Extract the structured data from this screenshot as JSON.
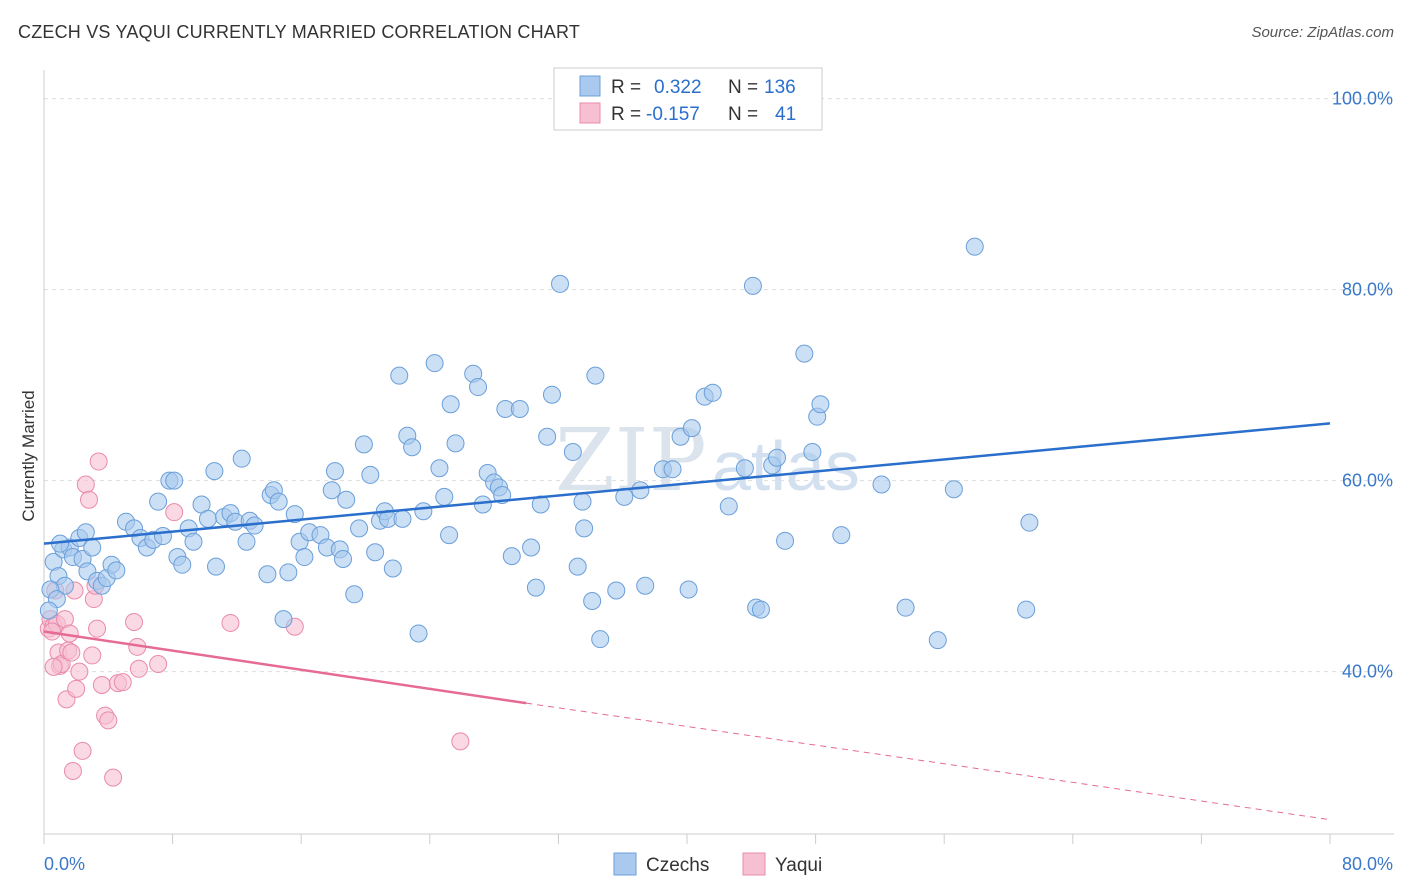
{
  "header": {
    "title": "CZECH VS YAQUI CURRENTLY MARRIED CORRELATION CHART",
    "source": "Source: ZipAtlas.com"
  },
  "watermark": {
    "part1": "ZIP",
    "part2": "atlas"
  },
  "legend_top": [
    {
      "r_label": "R =",
      "r_value": "0.322",
      "n_label": "N =",
      "n_value": "136"
    },
    {
      "r_label": "R =",
      "r_value": "-0.157",
      "n_label": "N =",
      "n_value": "41"
    }
  ],
  "legend_bottom": [
    "Czechs",
    "Yaqui"
  ],
  "colors": {
    "czech_fill": "#a9c9ee",
    "czech_stroke": "#6b9fd9",
    "czech_line": "#2a6fcc",
    "yaqui_fill": "#f7c0d2",
    "yaqui_stroke": "#e98bab",
    "yaqui_line": "#e66a96",
    "tick_label": "#3a78c9"
  },
  "chart_data": {
    "type": "scatter",
    "xlabel": "",
    "ylabel": "Currently Married",
    "xlim": [
      0,
      80
    ],
    "ylim": [
      23,
      103
    ],
    "x_tick_labels": [
      {
        "value": 0,
        "label": "0.0%"
      },
      {
        "value": 80,
        "label": "80.0%"
      }
    ],
    "y_tick_labels": [
      {
        "value": 40,
        "label": "40.0%"
      },
      {
        "value": 60,
        "label": "60.0%"
      },
      {
        "value": 80,
        "label": "80.0%"
      },
      {
        "value": 100,
        "label": "100.0%"
      }
    ],
    "grid": "horizontal-dashed",
    "series": [
      {
        "name": "Czechs",
        "points": [
          [
            0.6,
            51.5
          ],
          [
            0.9,
            50.0
          ],
          [
            1.2,
            52.8
          ],
          [
            1.3,
            49.0
          ],
          [
            1.6,
            53.0
          ],
          [
            1.8,
            52.0
          ],
          [
            2.2,
            54.0
          ],
          [
            2.4,
            51.8
          ],
          [
            2.7,
            50.5
          ],
          [
            3.0,
            53.0
          ],
          [
            3.3,
            49.5
          ],
          [
            3.6,
            49.0
          ],
          [
            3.9,
            49.8
          ],
          [
            4.2,
            51.2
          ],
          [
            4.5,
            50.6
          ],
          [
            5.1,
            55.7
          ],
          [
            5.6,
            55.0
          ],
          [
            6.0,
            54.0
          ],
          [
            6.4,
            53.0
          ],
          [
            6.8,
            53.8
          ],
          [
            7.1,
            57.8
          ],
          [
            7.4,
            54.2
          ],
          [
            7.8,
            60.0
          ],
          [
            8.1,
            60.0
          ],
          [
            8.3,
            52.0
          ],
          [
            8.6,
            51.2
          ],
          [
            9.0,
            55.0
          ],
          [
            9.3,
            53.6
          ],
          [
            9.8,
            57.5
          ],
          [
            10.2,
            56.0
          ],
          [
            10.6,
            61.0
          ],
          [
            10.7,
            51.0
          ],
          [
            11.2,
            56.2
          ],
          [
            11.6,
            56.6
          ],
          [
            11.9,
            55.7
          ],
          [
            12.3,
            62.3
          ],
          [
            12.6,
            53.6
          ],
          [
            12.8,
            55.8
          ],
          [
            13.1,
            55.3
          ],
          [
            13.9,
            50.2
          ],
          [
            14.1,
            58.5
          ],
          [
            14.3,
            59.0
          ],
          [
            14.6,
            57.8
          ],
          [
            14.9,
            45.5
          ],
          [
            15.2,
            50.4
          ],
          [
            15.6,
            56.5
          ],
          [
            15.9,
            53.6
          ],
          [
            16.2,
            52.0
          ],
          [
            16.5,
            54.6
          ],
          [
            17.2,
            54.3
          ],
          [
            17.6,
            53.0
          ],
          [
            17.9,
            59.0
          ],
          [
            18.1,
            61.0
          ],
          [
            18.4,
            52.8
          ],
          [
            18.6,
            51.8
          ],
          [
            18.8,
            58.0
          ],
          [
            19.3,
            48.1
          ],
          [
            19.6,
            55.0
          ],
          [
            19.9,
            63.8
          ],
          [
            20.3,
            60.6
          ],
          [
            20.6,
            52.5
          ],
          [
            20.9,
            55.8
          ],
          [
            21.2,
            56.8
          ],
          [
            21.4,
            56.0
          ],
          [
            21.7,
            50.8
          ],
          [
            22.1,
            71.0
          ],
          [
            22.3,
            56.0
          ],
          [
            22.6,
            64.7
          ],
          [
            22.9,
            63.5
          ],
          [
            23.3,
            44.0
          ],
          [
            23.6,
            56.8
          ],
          [
            24.3,
            72.3
          ],
          [
            24.6,
            61.3
          ],
          [
            24.9,
            58.3
          ],
          [
            25.2,
            54.3
          ],
          [
            25.3,
            68.0
          ],
          [
            25.6,
            63.9
          ],
          [
            26.7,
            71.2
          ],
          [
            27.0,
            69.8
          ],
          [
            27.3,
            57.5
          ],
          [
            27.6,
            60.8
          ],
          [
            28.0,
            59.8
          ],
          [
            28.3,
            59.3
          ],
          [
            28.5,
            58.5
          ],
          [
            28.7,
            67.5
          ],
          [
            29.1,
            52.1
          ],
          [
            29.6,
            67.5
          ],
          [
            30.3,
            53.0
          ],
          [
            30.6,
            48.8
          ],
          [
            30.9,
            57.5
          ],
          [
            31.3,
            64.6
          ],
          [
            31.6,
            69.0
          ],
          [
            32.1,
            80.6
          ],
          [
            32.9,
            63.0
          ],
          [
            33.2,
            51.0
          ],
          [
            33.5,
            57.8
          ],
          [
            33.6,
            55.0
          ],
          [
            34.1,
            47.4
          ],
          [
            34.3,
            71.0
          ],
          [
            34.6,
            43.4
          ],
          [
            35.6,
            48.5
          ],
          [
            36.1,
            58.3
          ],
          [
            37.1,
            59.0
          ],
          [
            37.4,
            49.0
          ],
          [
            38.5,
            61.2
          ],
          [
            39.1,
            61.2
          ],
          [
            39.6,
            64.6
          ],
          [
            40.1,
            48.6
          ],
          [
            40.3,
            65.5
          ],
          [
            41.1,
            68.8
          ],
          [
            41.6,
            69.2
          ],
          [
            42.6,
            57.3
          ],
          [
            43.6,
            61.3
          ],
          [
            44.1,
            80.4
          ],
          [
            44.3,
            46.7
          ],
          [
            44.6,
            46.5
          ],
          [
            45.3,
            61.6
          ],
          [
            45.6,
            62.4
          ],
          [
            46.1,
            53.7
          ],
          [
            47.3,
            73.3
          ],
          [
            47.8,
            63.0
          ],
          [
            48.1,
            66.7
          ],
          [
            48.3,
            68.0
          ],
          [
            49.6,
            54.3
          ],
          [
            52.1,
            59.6
          ],
          [
            53.6,
            46.7
          ],
          [
            55.6,
            43.3
          ],
          [
            56.6,
            59.1
          ],
          [
            57.9,
            84.5
          ],
          [
            61.1,
            46.5
          ],
          [
            61.3,
            55.6
          ],
          [
            0.4,
            48.6
          ],
          [
            0.8,
            47.6
          ],
          [
            0.3,
            46.4
          ],
          [
            1.0,
            53.4
          ],
          [
            2.6,
            54.6
          ]
        ]
      },
      {
        "name": "Yaqui",
        "points": [
          [
            0.3,
            44.5
          ],
          [
            0.4,
            45.5
          ],
          [
            0.6,
            44.8
          ],
          [
            0.7,
            48.5
          ],
          [
            0.8,
            45.0
          ],
          [
            0.9,
            42.0
          ],
          [
            1.0,
            40.6
          ],
          [
            1.1,
            40.8
          ],
          [
            1.3,
            45.5
          ],
          [
            1.4,
            37.1
          ],
          [
            1.5,
            42.2
          ],
          [
            1.6,
            44.0
          ],
          [
            1.7,
            42.0
          ],
          [
            1.8,
            29.6
          ],
          [
            1.9,
            48.5
          ],
          [
            2.0,
            38.2
          ],
          [
            2.2,
            40.0
          ],
          [
            2.4,
            31.7
          ],
          [
            2.6,
            59.6
          ],
          [
            2.8,
            58.0
          ],
          [
            3.0,
            41.7
          ],
          [
            3.1,
            47.6
          ],
          [
            3.2,
            49.0
          ],
          [
            3.3,
            44.5
          ],
          [
            3.4,
            62.0
          ],
          [
            3.6,
            38.6
          ],
          [
            3.8,
            35.4
          ],
          [
            4.0,
            34.9
          ],
          [
            4.3,
            28.9
          ],
          [
            4.6,
            38.8
          ],
          [
            4.9,
            38.9
          ],
          [
            5.6,
            45.2
          ],
          [
            5.8,
            42.6
          ],
          [
            5.9,
            40.3
          ],
          [
            7.1,
            40.8
          ],
          [
            8.1,
            56.7
          ],
          [
            11.6,
            45.1
          ],
          [
            15.6,
            44.7
          ],
          [
            25.9,
            32.7
          ],
          [
            0.5,
            44.2
          ],
          [
            0.6,
            40.5
          ]
        ]
      }
    ],
    "trend_lines": [
      {
        "series": "Czechs",
        "from": [
          0,
          53.4
        ],
        "to": [
          80,
          66.0
        ],
        "style": "solid"
      },
      {
        "series": "Yaqui",
        "from": [
          0,
          44.2
        ],
        "to": [
          30,
          36.7
        ],
        "style": "solid"
      },
      {
        "series": "Yaqui",
        "from": [
          30,
          36.7
        ],
        "to": [
          80,
          24.5
        ],
        "style": "dashed"
      }
    ]
  }
}
